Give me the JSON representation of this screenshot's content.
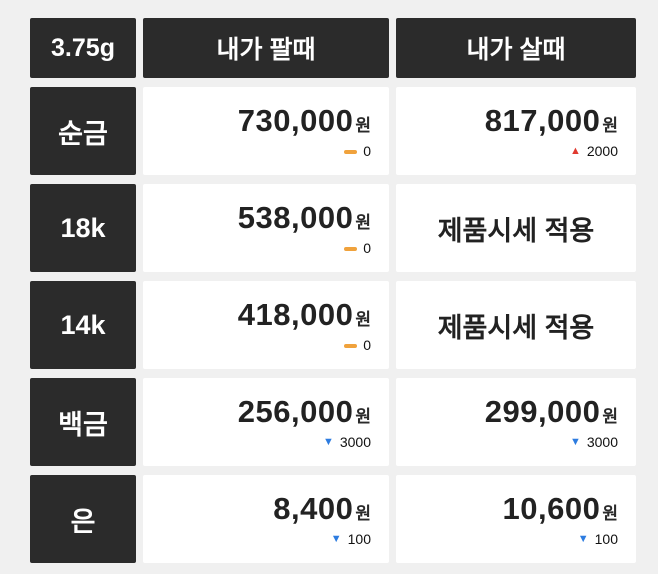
{
  "header": {
    "unit": "3.75g",
    "sell": "내가 팔때",
    "buy": "내가 살때"
  },
  "colors": {
    "up_red": "#e0392f",
    "down_blue": "#2d7ce0",
    "flat_orange": "#f0a23c",
    "cell_dark": "#2b2b2b",
    "cell_white": "#ffffff",
    "page_background": "#f0f0f0"
  },
  "rows": [
    {
      "label": "순금",
      "sell": {
        "price": "730,000",
        "suffix": "원",
        "change": "0",
        "dir": "flat"
      },
      "buy": {
        "price": "817,000",
        "suffix": "원",
        "change": "2000",
        "dir": "up"
      }
    },
    {
      "label": "18k",
      "sell": {
        "price": "538,000",
        "suffix": "원",
        "change": "0",
        "dir": "flat"
      },
      "buy": {
        "text": "제품시세 적용"
      }
    },
    {
      "label": "14k",
      "sell": {
        "price": "418,000",
        "suffix": "원",
        "change": "0",
        "dir": "flat"
      },
      "buy": {
        "text": "제품시세 적용"
      }
    },
    {
      "label": "백금",
      "sell": {
        "price": "256,000",
        "suffix": "원",
        "change": "3000",
        "dir": "down"
      },
      "buy": {
        "price": "299,000",
        "suffix": "원",
        "change": "3000",
        "dir": "down"
      }
    },
    {
      "label": "은",
      "sell": {
        "price": "8,400",
        "suffix": "원",
        "change": "100",
        "dir": "down"
      },
      "buy": {
        "price": "10,600",
        "suffix": "원",
        "change": "100",
        "dir": "down"
      }
    }
  ]
}
